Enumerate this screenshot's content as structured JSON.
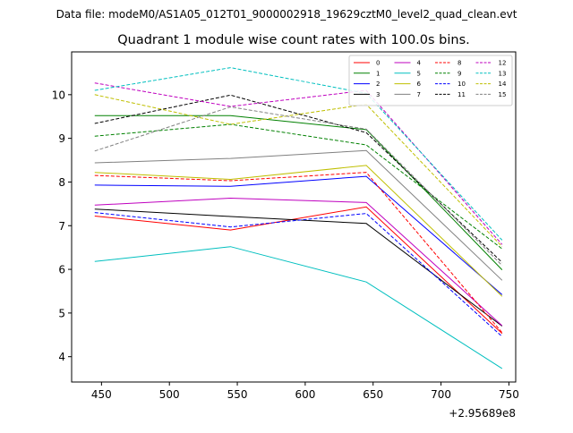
{
  "suptitle": "Data file: modeM0/AS1A05_012T01_9000002918_19629cztM0_level2_quad_clean.evt",
  "chart_data": {
    "type": "line",
    "title": "Quadrant 1 module wise count rates with 100.0s bins.",
    "xlabel": "",
    "ylabel": "",
    "x_offset_label": "+2.95689e8",
    "x": [
      445,
      545,
      645,
      745
    ],
    "xlim": [
      428,
      755
    ],
    "ylim": [
      3.42,
      10.98
    ],
    "xticks": [
      450,
      500,
      550,
      600,
      650,
      700,
      750
    ],
    "yticks": [
      4,
      5,
      6,
      7,
      8,
      9,
      10
    ],
    "grid": false,
    "legend_position": "top-right",
    "legend_columns": 4,
    "series": [
      {
        "name": "0",
        "color": "#ff0000",
        "dash": "solid",
        "values": [
          7.22,
          6.9,
          7.43,
          4.53
        ]
      },
      {
        "name": "1",
        "color": "#008000",
        "dash": "solid",
        "values": [
          9.52,
          9.52,
          9.2,
          5.99
        ]
      },
      {
        "name": "2",
        "color": "#0000ff",
        "dash": "solid",
        "values": [
          7.93,
          7.9,
          8.13,
          5.42
        ]
      },
      {
        "name": "3",
        "color": "#000000",
        "dash": "solid",
        "values": [
          7.38,
          7.21,
          7.05,
          4.7
        ]
      },
      {
        "name": "4",
        "color": "#bf00bf",
        "dash": "solid",
        "values": [
          7.47,
          7.63,
          7.53,
          4.71
        ]
      },
      {
        "name": "5",
        "color": "#00bfbf",
        "dash": "solid",
        "values": [
          6.18,
          6.52,
          5.71,
          3.73
        ]
      },
      {
        "name": "6",
        "color": "#bfbf00",
        "dash": "solid",
        "values": [
          8.22,
          8.06,
          8.38,
          5.38
        ]
      },
      {
        "name": "7",
        "color": "#808080",
        "dash": "solid",
        "values": [
          8.44,
          8.54,
          8.72,
          5.75
        ]
      },
      {
        "name": "8",
        "color": "#ff0000",
        "dash": "dashed",
        "values": [
          8.15,
          8.03,
          8.22,
          4.55
        ]
      },
      {
        "name": "9",
        "color": "#008000",
        "dash": "dashed",
        "values": [
          9.05,
          9.32,
          8.85,
          6.47
        ]
      },
      {
        "name": "10",
        "color": "#0000ff",
        "dash": "dashed",
        "values": [
          7.3,
          6.97,
          7.28,
          4.46
        ]
      },
      {
        "name": "11",
        "color": "#000000",
        "dash": "dashed",
        "values": [
          9.34,
          9.99,
          9.13,
          6.16
        ]
      },
      {
        "name": "12",
        "color": "#bf00bf",
        "dash": "dashed",
        "values": [
          10.27,
          9.73,
          10.1,
          6.57
        ]
      },
      {
        "name": "13",
        "color": "#00bfbf",
        "dash": "dashed",
        "values": [
          10.1,
          10.62,
          10.03,
          6.67
        ]
      },
      {
        "name": "14",
        "color": "#bfbf00",
        "dash": "dashed",
        "values": [
          10.0,
          9.32,
          9.78,
          6.52
        ]
      },
      {
        "name": "15",
        "color": "#808080",
        "dash": "dashed",
        "values": [
          8.71,
          9.72,
          9.21,
          6.09
        ]
      }
    ]
  }
}
